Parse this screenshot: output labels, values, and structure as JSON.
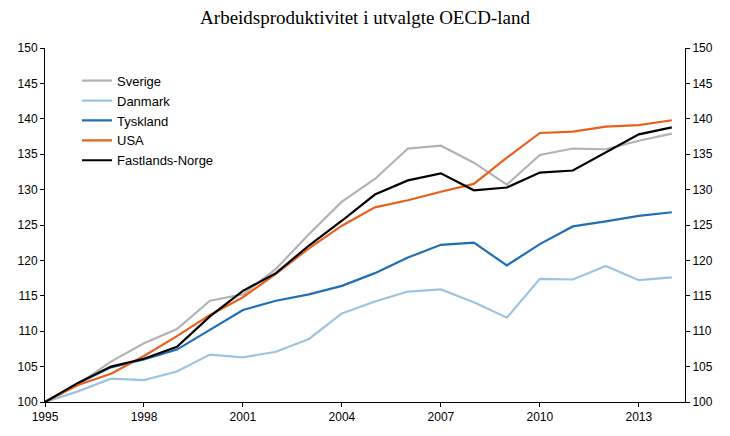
{
  "chart_data": {
    "type": "line",
    "title": "Arbeidsproduktivitet i utvalgte OECD-land",
    "x": [
      1995,
      1996,
      1997,
      1998,
      1999,
      2000,
      2001,
      2002,
      2003,
      2004,
      2005,
      2006,
      2007,
      2008,
      2009,
      2010,
      2011,
      2012,
      2013,
      2014
    ],
    "series": [
      {
        "name": "Sverige",
        "color": "#b3b3b3",
        "values": [
          100,
          102.5,
          105.7,
          108.3,
          110.3,
          114.3,
          115.2,
          118.8,
          123.7,
          128.3,
          131.5,
          135.8,
          136.2,
          133.8,
          130.7,
          134.9,
          135.8,
          135.7,
          136.9,
          137.9
        ]
      },
      {
        "name": "Danmark",
        "color": "#9ec3e0",
        "values": [
          100,
          101.5,
          103.3,
          103.1,
          104.3,
          106.7,
          106.3,
          107.1,
          108.9,
          112.5,
          114.2,
          115.6,
          115.9,
          114.1,
          111.9,
          117.4,
          117.3,
          119.2,
          117.2,
          117.6
        ]
      },
      {
        "name": "Tyskland",
        "color": "#1f6fb4",
        "values": [
          100,
          102.6,
          104.9,
          106.0,
          107.4,
          110.2,
          113.0,
          114.3,
          115.2,
          116.4,
          118.2,
          120.4,
          122.2,
          122.5,
          119.3,
          122.3,
          124.8,
          125.5,
          126.3,
          126.8
        ]
      },
      {
        "name": "USA",
        "color": "#e8601c",
        "values": [
          100,
          102.4,
          104.0,
          106.5,
          109.3,
          112.3,
          114.8,
          118.1,
          121.7,
          124.9,
          127.5,
          128.5,
          129.7,
          130.8,
          134.5,
          138.0,
          138.2,
          138.9,
          139.1,
          139.8
        ]
      },
      {
        "name": "Fastlands-Norge",
        "color": "#000000",
        "values": [
          100,
          102.7,
          105.0,
          106.1,
          107.8,
          112.1,
          115.7,
          118.2,
          122.1,
          125.6,
          129.3,
          131.3,
          132.3,
          129.9,
          130.3,
          132.4,
          132.7,
          135.3,
          137.8,
          138.8
        ]
      }
    ],
    "xlim": [
      1995,
      2014.4
    ],
    "xticks": [
      1995,
      1998,
      2001,
      2004,
      2007,
      2010,
      2013
    ],
    "ylim": [
      100,
      150
    ],
    "yticks": [
      100,
      105,
      110,
      115,
      120,
      125,
      130,
      135,
      140,
      145,
      150
    ],
    "y2lim": [
      100,
      150
    ],
    "y2ticks": [
      100,
      105,
      110,
      115,
      120,
      125,
      130,
      135,
      140,
      145,
      150
    ],
    "grid": false,
    "legend": "upper left"
  }
}
